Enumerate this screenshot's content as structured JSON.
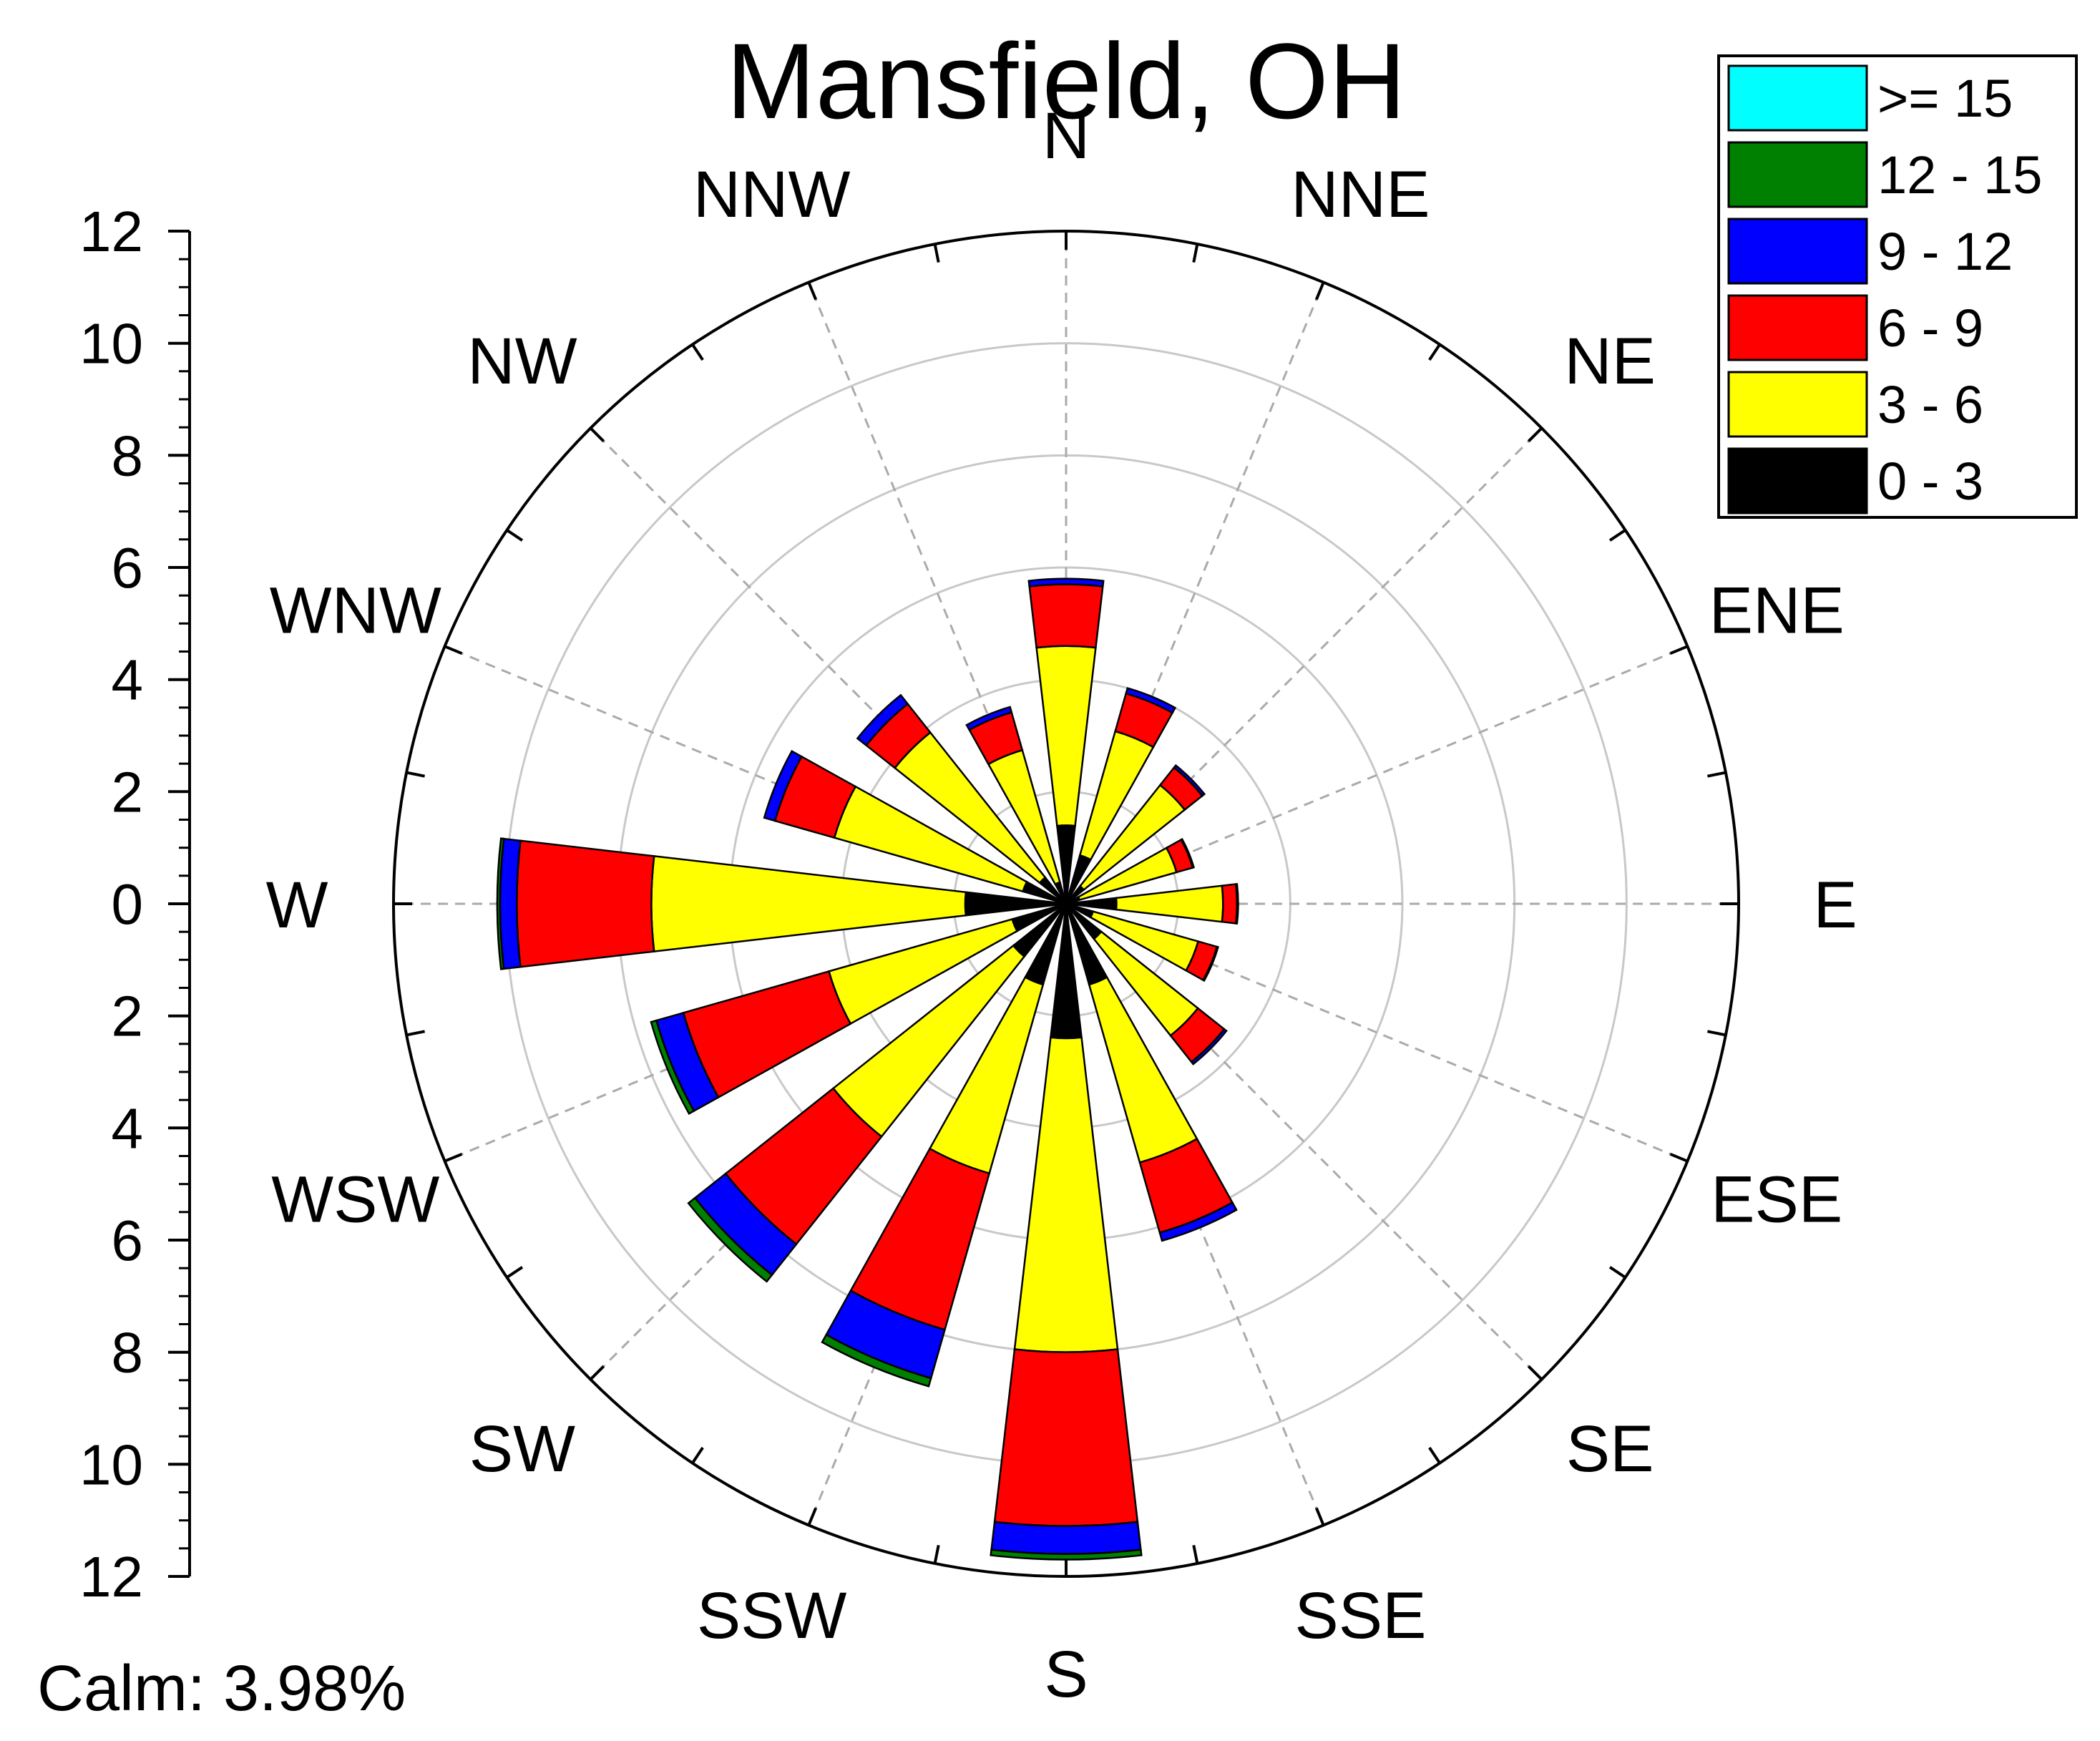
{
  "chart_data": {
    "type": "windrose",
    "title": "Mansfield, OH",
    "calm_label": "Calm: 3.98%",
    "radial_axis": {
      "ticks_up": [
        "12",
        "10",
        "8",
        "6",
        "4",
        "2",
        "0"
      ],
      "ticks_down": [
        "2",
        "4",
        "6",
        "8",
        "10",
        "12"
      ],
      "range": [
        0,
        12
      ],
      "grid_step": 2,
      "grid": true
    },
    "directions": [
      "N",
      "NNE",
      "NE",
      "ENE",
      "E",
      "ESE",
      "SE",
      "SSE",
      "S",
      "SSW",
      "SW",
      "WSW",
      "W",
      "WNW",
      "NW",
      "NNW"
    ],
    "legend_position": "top-right",
    "bins": [
      {
        "label": "0 - 3",
        "color": "#000000"
      },
      {
        "label": "3 - 6",
        "color": "#ffff00"
      },
      {
        "label": "6 - 9",
        "color": "#ff0000"
      },
      {
        "label": "9 - 12",
        "color": "#0000ff"
      },
      {
        "label": "12 - 15",
        "color": "#008000"
      },
      {
        "label": ">= 15",
        "color": "#00ffff"
      }
    ],
    "cumulative": [
      [
        1.4,
        4.6,
        5.7,
        5.8,
        5.8,
        5.8
      ],
      [
        0.9,
        3.2,
        3.9,
        4.0,
        4.0,
        4.0
      ],
      [
        0.4,
        2.7,
        3.1,
        3.15,
        3.15,
        3.15
      ],
      [
        0.25,
        2.05,
        2.35,
        2.37,
        2.37,
        2.37
      ],
      [
        0.9,
        2.8,
        3.05,
        3.07,
        3.07,
        3.07
      ],
      [
        0.5,
        2.45,
        2.8,
        2.82,
        2.82,
        2.82
      ],
      [
        0.8,
        3.0,
        3.6,
        3.65,
        3.65,
        3.65
      ],
      [
        1.5,
        4.8,
        6.1,
        6.25,
        6.25,
        6.25
      ],
      [
        2.4,
        8.0,
        11.1,
        11.6,
        11.7,
        11.7
      ],
      [
        1.5,
        5.0,
        7.9,
        8.8,
        8.95,
        8.95
      ],
      [
        1.2,
        5.3,
        7.75,
        8.45,
        8.6,
        8.6
      ],
      [
        1.0,
        4.4,
        7.1,
        7.6,
        7.7,
        7.7
      ],
      [
        1.8,
        7.4,
        9.8,
        10.1,
        10.15,
        10.15
      ],
      [
        0.8,
        4.3,
        5.4,
        5.6,
        5.6,
        5.6
      ],
      [
        0.6,
        3.9,
        4.55,
        4.75,
        4.75,
        4.75
      ],
      [
        0.4,
        2.85,
        3.55,
        3.65,
        3.65,
        3.65
      ]
    ]
  }
}
